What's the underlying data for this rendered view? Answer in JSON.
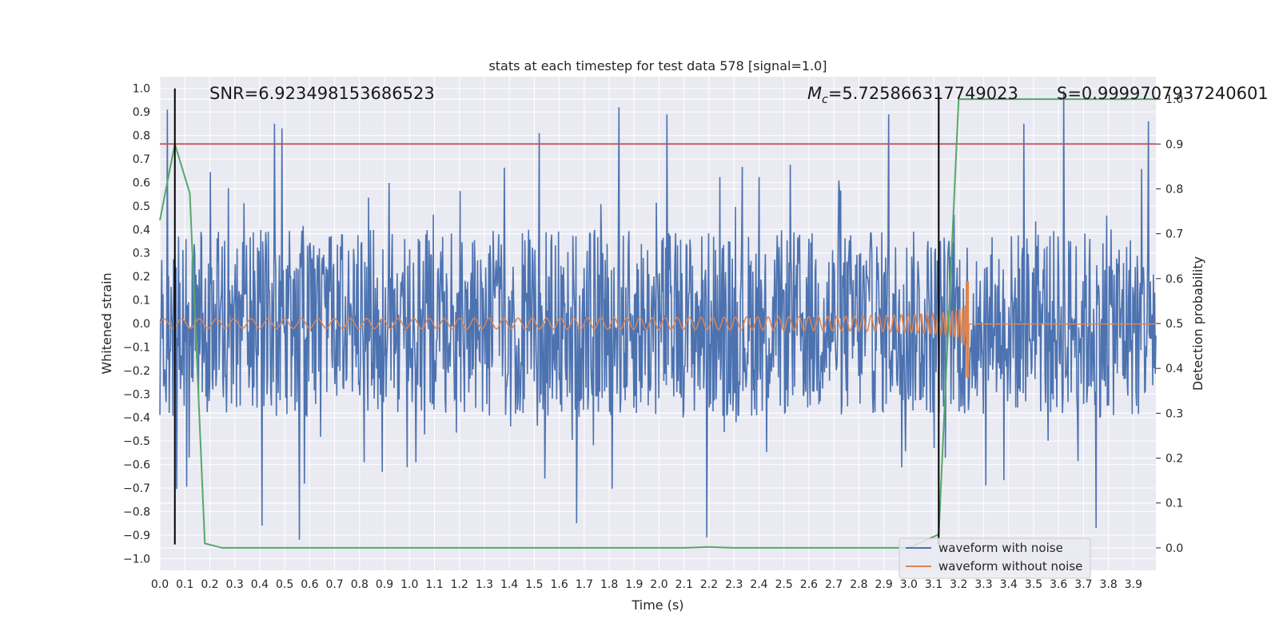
{
  "chart_data": {
    "type": "line",
    "title": "stats at each timestep for test data 578 [signal=1.0]",
    "xlabel": "Time (s)",
    "ylabel": "Whitened strain",
    "ylabel_right": "Detection probability",
    "xlim": [
      0.0,
      3.99
    ],
    "ylim": [
      -1.05,
      1.05
    ],
    "ylim_right": [
      -0.05,
      1.05
    ],
    "x_ticks": [
      "0.0",
      "0.1",
      "0.2",
      "0.3",
      "0.4",
      "0.5",
      "0.6",
      "0.7",
      "0.8",
      "0.9",
      "1.0",
      "1.1",
      "1.2",
      "1.3",
      "1.4",
      "1.5",
      "1.6",
      "1.7",
      "1.8",
      "1.9",
      "2.0",
      "2.1",
      "2.2",
      "2.3",
      "2.4",
      "2.5",
      "2.6",
      "2.7",
      "2.8",
      "2.9",
      "3.0",
      "3.1",
      "3.2",
      "3.3",
      "3.4",
      "3.5",
      "3.6",
      "3.7",
      "3.8",
      "3.9"
    ],
    "y_ticks": [
      "1.0",
      "0.9",
      "0.8",
      "0.7",
      "0.6",
      "0.5",
      "0.4",
      "0.3",
      "0.2",
      "0.1",
      "0.0",
      "−0.1",
      "−0.2",
      "−0.3",
      "−0.4",
      "−0.5",
      "−0.6",
      "−0.7",
      "−0.8",
      "−0.9",
      "−1.0"
    ],
    "y_right_ticks": [
      "1.0",
      "0.9",
      "0.8",
      "0.7",
      "0.6",
      "0.5",
      "0.4",
      "0.3",
      "0.2",
      "0.1",
      "0.0"
    ],
    "grid": true,
    "legend_position": "bottom-right",
    "annotations": {
      "snr": "SNR=6.923498153686523",
      "mc_prefix": "M",
      "mc_sub": "c",
      "mc_value": "=5.725866317749023",
      "s": "S=0.9999707937240601"
    },
    "series": [
      {
        "name": "waveform with noise",
        "color": "#4c72b0",
        "description": "noisy whitened strain, amplitude mostly within ±0.4 with spikes to ±0.9",
        "amplitude_envelope": 0.4,
        "peaks": [
          {
            "x": 0.03,
            "y": 0.91
          },
          {
            "x": 0.46,
            "y": 0.85
          },
          {
            "x": 0.49,
            "y": 0.83
          },
          {
            "x": 1.52,
            "y": 0.81
          },
          {
            "x": 1.84,
            "y": 0.92
          },
          {
            "x": 2.03,
            "y": 0.89
          },
          {
            "x": 2.92,
            "y": 0.89
          },
          {
            "x": 3.62,
            "y": 0.99
          },
          {
            "x": 3.46,
            "y": 0.85
          },
          {
            "x": 3.96,
            "y": 0.86
          },
          {
            "x": 0.56,
            "y": -0.92
          },
          {
            "x": 0.41,
            "y": -0.86
          },
          {
            "x": 2.19,
            "y": -0.91
          },
          {
            "x": 3.75,
            "y": -0.87
          },
          {
            "x": 1.67,
            "y": -0.85
          }
        ]
      },
      {
        "name": "waveform without noise",
        "color": "#dd8452",
        "description": "chirp oscillation growing from ±0.02 to about +0.18/−0.23 near 3.24 s then flat at 0.0",
        "start_amplitude": 0.02,
        "merger_time": 3.24,
        "merger_max": 0.18,
        "merger_min": -0.23
      },
      {
        "name": "",
        "color": "#55a868",
        "axis": "right",
        "x": [
          0.0,
          0.06,
          0.12,
          0.18,
          0.25,
          0.5,
          1.0,
          1.5,
          2.0,
          2.1,
          2.2,
          2.3,
          2.5,
          3.0,
          3.12,
          3.2,
          3.5,
          3.99
        ],
        "y": [
          0.73,
          0.9,
          0.79,
          0.01,
          0.0,
          0.0,
          0.0,
          0.0,
          0.0,
          0.0,
          0.002,
          0.0,
          0.0,
          0.0,
          0.03,
          1.0,
          1.0,
          1.0
        ]
      }
    ],
    "threshold_line": {
      "y_right": 0.9,
      "color": "#c44e52"
    },
    "vertical_lines": [
      {
        "x": 0.06,
        "y_range": [
          -0.94,
          1.0
        ],
        "color": "#000000"
      },
      {
        "x": 3.12,
        "y_range": [
          -0.94,
          1.0
        ],
        "color": "#000000"
      }
    ],
    "colors": {
      "plot_background": "#eaeaf2",
      "grid": "#ffffff",
      "noisy": "#4c72b0",
      "clean": "#dd8452",
      "probability": "#55a868",
      "threshold": "#c44e52"
    }
  }
}
